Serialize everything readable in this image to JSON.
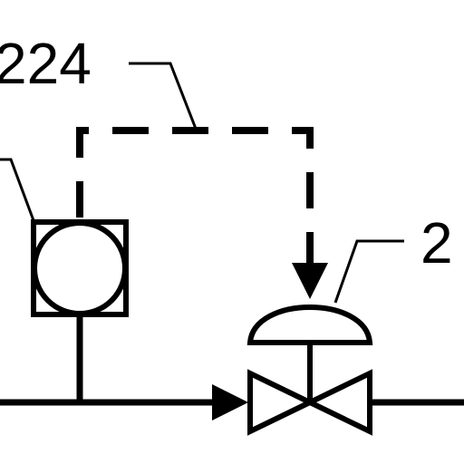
{
  "diagram": {
    "labels": {
      "ref_224": "224",
      "ref_2": "2"
    },
    "colors": {
      "ink": "#000000",
      "background": "#ffffff"
    },
    "symbols": [
      "instrument-sensor-symbol",
      "control-valve-actuator-symbol",
      "gate-valve-body-symbol"
    ]
  }
}
